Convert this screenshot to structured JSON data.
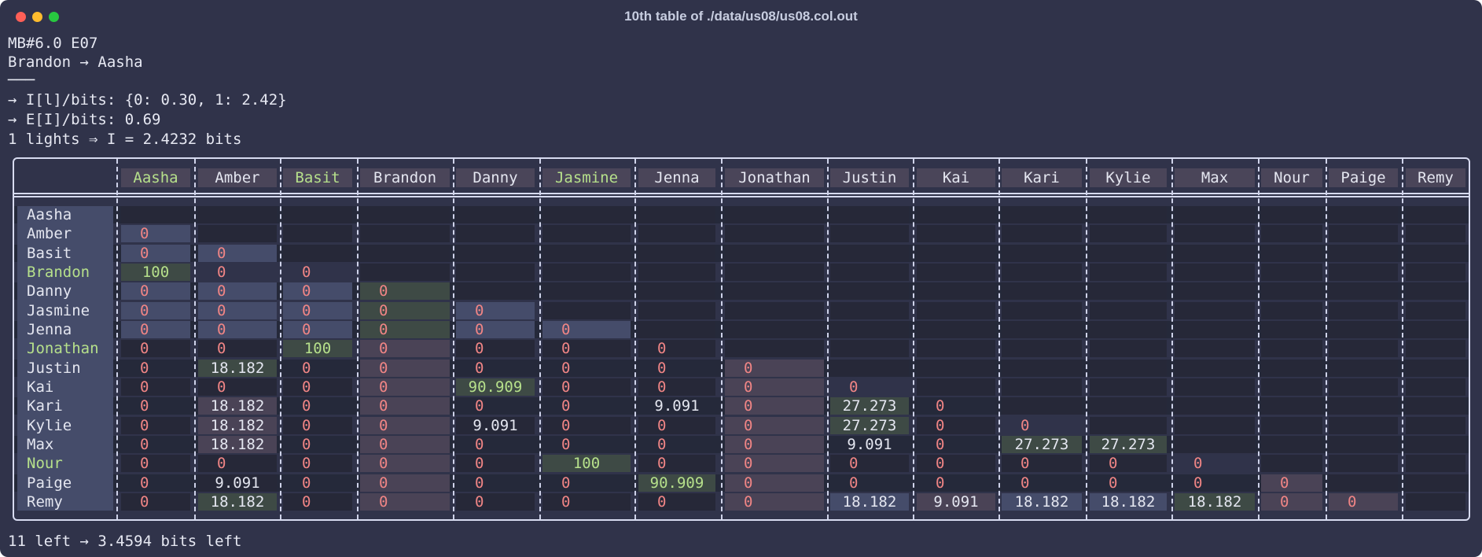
{
  "window": {
    "title": "10th table of ./data/us08/us08.col.out"
  },
  "header_lines": [
    "MB#6.0 E07",
    "Brandon → Aasha",
    "───",
    "→ I[l]/bits: {0: 0.30, 1: 2.42}",
    "→ E[I]/bits: 0.69",
    "1 lights ⇒ I = 2.4232 bits"
  ],
  "footer": "11 left → 3.4594 bits left",
  "colors": {
    "bg": "#30334a",
    "zero": "#f08585",
    "value": "#e4e6f0",
    "hundred": "#b6e08b",
    "blue_cell": "#454c6a",
    "green_cell": "#3e4a45",
    "mauve_cell": "#4a4356",
    "dark_cell": "#262838"
  },
  "table": {
    "columns": [
      "Aasha",
      "Amber",
      "Basit",
      "Brandon",
      "Danny",
      "Jasmine",
      "Jenna",
      "Jonathan",
      "Justin",
      "Kai",
      "Kari",
      "Kylie",
      "Max",
      "Nour",
      "Paige",
      "Remy"
    ],
    "highlight_columns": [
      "Aasha",
      "Basit",
      "Jasmine"
    ],
    "rows": [
      "Aasha",
      "Amber",
      "Basit",
      "Brandon",
      "Danny",
      "Jasmine",
      "Jenna",
      "Jonathan",
      "Justin",
      "Kai",
      "Kari",
      "Kylie",
      "Max",
      "Nour",
      "Paige",
      "Remy"
    ],
    "highlight_rows": [
      "Brandon",
      "Jonathan",
      "Nour"
    ],
    "values": [
      [],
      [
        "0"
      ],
      [
        "0",
        "0"
      ],
      [
        "100",
        "0",
        "0"
      ],
      [
        "0",
        "0",
        "0",
        "0"
      ],
      [
        "0",
        "0",
        "0",
        "0",
        "0"
      ],
      [
        "0",
        "0",
        "0",
        "0",
        "0",
        "0"
      ],
      [
        "0",
        "0",
        "100",
        "0",
        "0",
        "0",
        "0"
      ],
      [
        "0",
        "18.182",
        "0",
        "0",
        "0",
        "0",
        "0",
        "0"
      ],
      [
        "0",
        "0",
        "0",
        "0",
        "90.909",
        "0",
        "0",
        "0",
        "0"
      ],
      [
        "0",
        "18.182",
        "0",
        "0",
        "0",
        "0",
        "9.091",
        "0",
        "27.273",
        "0"
      ],
      [
        "0",
        "18.182",
        "0",
        "0",
        "9.091",
        "0",
        "0",
        "0",
        "27.273",
        "0",
        "0"
      ],
      [
        "0",
        "18.182",
        "0",
        "0",
        "0",
        "0",
        "0",
        "0",
        "9.091",
        "0",
        "27.273",
        "27.273"
      ],
      [
        "0",
        "0",
        "0",
        "0",
        "0",
        "100",
        "0",
        "0",
        "0",
        "0",
        "0",
        "0",
        "0"
      ],
      [
        "0",
        "9.091",
        "0",
        "0",
        "0",
        "0",
        "90.909",
        "0",
        "0",
        "0",
        "0",
        "0",
        "0",
        "0"
      ],
      [
        "0",
        "18.182",
        "0",
        "0",
        "0",
        "0",
        "0",
        "0",
        "18.182",
        "9.091",
        "18.182",
        "18.182",
        "18.182",
        "0",
        "0"
      ]
    ],
    "cell_styles": [
      [],
      [
        "blue"
      ],
      [
        "blue",
        "blue"
      ],
      [
        "green",
        "none"
      ],
      [
        "blue",
        "blue",
        "blue",
        "green"
      ],
      [
        "blue",
        "blue",
        "blue",
        "green",
        "blue"
      ],
      [
        "blue",
        "blue",
        "blue",
        "green",
        "blue",
        "blue"
      ],
      [
        "dark",
        "dark",
        "green",
        "mauve",
        "dark",
        "dark",
        "dark"
      ],
      [
        "none",
        "green",
        "none",
        "mauve",
        "none",
        "none",
        "none",
        "mauve"
      ],
      [
        "dark",
        "dark",
        "dark",
        "mauve",
        "green",
        "dark",
        "dark",
        "mauve",
        "none"
      ],
      [
        "none",
        "mauve",
        "none",
        "mauve",
        "none",
        "none",
        "none",
        "mauve",
        "green",
        "none"
      ],
      [
        "dark",
        "mauve",
        "dark",
        "mauve",
        "dark",
        "dark",
        "dark",
        "mauve",
        "green",
        "dark",
        "none"
      ],
      [
        "none",
        "mauve",
        "none",
        "mauve",
        "none",
        "none",
        "none",
        "mauve",
        "none",
        "none",
        "green",
        "green"
      ],
      [
        "dark",
        "dark",
        "dark",
        "mauve",
        "dark",
        "green",
        "dark",
        "mauve",
        "dark",
        "dark",
        "dark",
        "dark",
        "none"
      ],
      [
        "none",
        "dark",
        "none",
        "mauve",
        "none",
        "none",
        "green",
        "mauve",
        "none",
        "none",
        "none",
        "none",
        "none",
        "mauve"
      ],
      [
        "dark",
        "green",
        "dark",
        "mauve",
        "dark",
        "dark",
        "dark",
        "mauve",
        "blue",
        "mauve",
        "blue",
        "blue",
        "green",
        "mauve",
        "mauve"
      ]
    ]
  }
}
